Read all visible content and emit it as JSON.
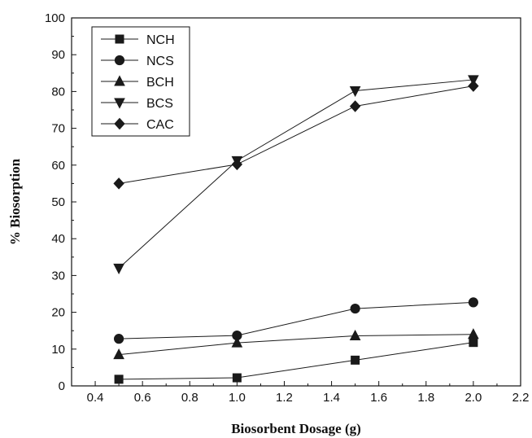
{
  "chart_data": {
    "type": "line",
    "title": "",
    "xlabel": "Biosorbent Dosage (g)",
    "ylabel": "% Biosorption",
    "xlim": [
      0.3,
      2.2
    ],
    "ylim": [
      0,
      100
    ],
    "x_ticks": [
      "0.4",
      "0.6",
      "0.8",
      "1.0",
      "1.2",
      "1.4",
      "1.6",
      "1.8",
      "2.0",
      "2.2"
    ],
    "y_ticks": [
      "0",
      "10",
      "20",
      "30",
      "40",
      "50",
      "60",
      "70",
      "80",
      "90",
      "100"
    ],
    "x": [
      0.5,
      1.0,
      1.5,
      2.0
    ],
    "legend_position": "top-left",
    "grid": false,
    "series": [
      {
        "name": "NCH",
        "marker": "square",
        "values": [
          1.8,
          2.2,
          7.0,
          11.8
        ]
      },
      {
        "name": "NCS",
        "marker": "circle",
        "values": [
          12.8,
          13.7,
          21.0,
          22.7
        ]
      },
      {
        "name": "BCH",
        "marker": "triangle-up",
        "values": [
          8.5,
          11.7,
          13.6,
          14.0
        ]
      },
      {
        "name": "BCS",
        "marker": "triangle-down",
        "values": [
          32.0,
          61.2,
          80.2,
          83.2
        ]
      },
      {
        "name": "CAC",
        "marker": "diamond",
        "values": [
          55.0,
          60.2,
          76.0,
          81.5
        ]
      }
    ],
    "line_color": "#1a1a1a"
  }
}
